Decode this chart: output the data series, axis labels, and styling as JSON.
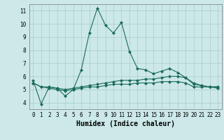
{
  "title": "",
  "xlabel": "Humidex (Indice chaleur)",
  "ylabel": "",
  "xlim": [
    -0.5,
    23.5
  ],
  "ylim": [
    3.5,
    11.5
  ],
  "yticks": [
    4,
    5,
    6,
    7,
    8,
    9,
    10,
    11
  ],
  "xticks": [
    0,
    1,
    2,
    3,
    4,
    5,
    6,
    7,
    8,
    9,
    10,
    11,
    12,
    13,
    14,
    15,
    16,
    17,
    18,
    19,
    20,
    21,
    22,
    23
  ],
  "bg_color": "#cce8e8",
  "grid_color": "#aacccc",
  "line_color": "#1a6b5a",
  "line1_x": [
    0,
    1,
    2,
    3,
    4,
    5,
    6,
    7,
    8,
    9,
    10,
    11,
    12,
    13,
    14,
    15,
    16,
    17,
    18,
    19,
    20,
    21,
    22,
    23
  ],
  "line1_y": [
    5.7,
    3.9,
    5.2,
    5.1,
    4.5,
    5.0,
    6.5,
    9.3,
    11.2,
    9.9,
    9.3,
    10.1,
    7.9,
    6.6,
    6.5,
    6.2,
    6.4,
    6.6,
    6.3,
    5.9,
    5.5,
    5.3,
    5.2,
    5.2
  ],
  "line2_x": [
    0,
    1,
    2,
    3,
    4,
    5,
    6,
    7,
    8,
    9,
    10,
    11,
    12,
    13,
    14,
    15,
    16,
    17,
    18,
    19,
    20,
    21,
    22,
    23
  ],
  "line2_y": [
    5.5,
    5.2,
    5.2,
    5.1,
    5.0,
    5.1,
    5.2,
    5.3,
    5.4,
    5.5,
    5.6,
    5.7,
    5.7,
    5.7,
    5.8,
    5.8,
    5.9,
    6.0,
    6.0,
    5.9,
    5.4,
    5.3,
    5.2,
    5.2
  ],
  "line3_x": [
    0,
    1,
    2,
    3,
    4,
    5,
    6,
    7,
    8,
    9,
    10,
    11,
    12,
    13,
    14,
    15,
    16,
    17,
    18,
    19,
    20,
    21,
    22,
    23
  ],
  "line3_y": [
    5.5,
    5.2,
    5.1,
    5.0,
    4.9,
    5.0,
    5.1,
    5.2,
    5.2,
    5.3,
    5.4,
    5.4,
    5.4,
    5.5,
    5.5,
    5.5,
    5.6,
    5.6,
    5.6,
    5.5,
    5.2,
    5.2,
    5.2,
    5.1
  ],
  "marker": "D",
  "markersize": 2.0,
  "linewidth": 0.8,
  "xlabel_fontsize": 7,
  "tick_fontsize": 5.5
}
